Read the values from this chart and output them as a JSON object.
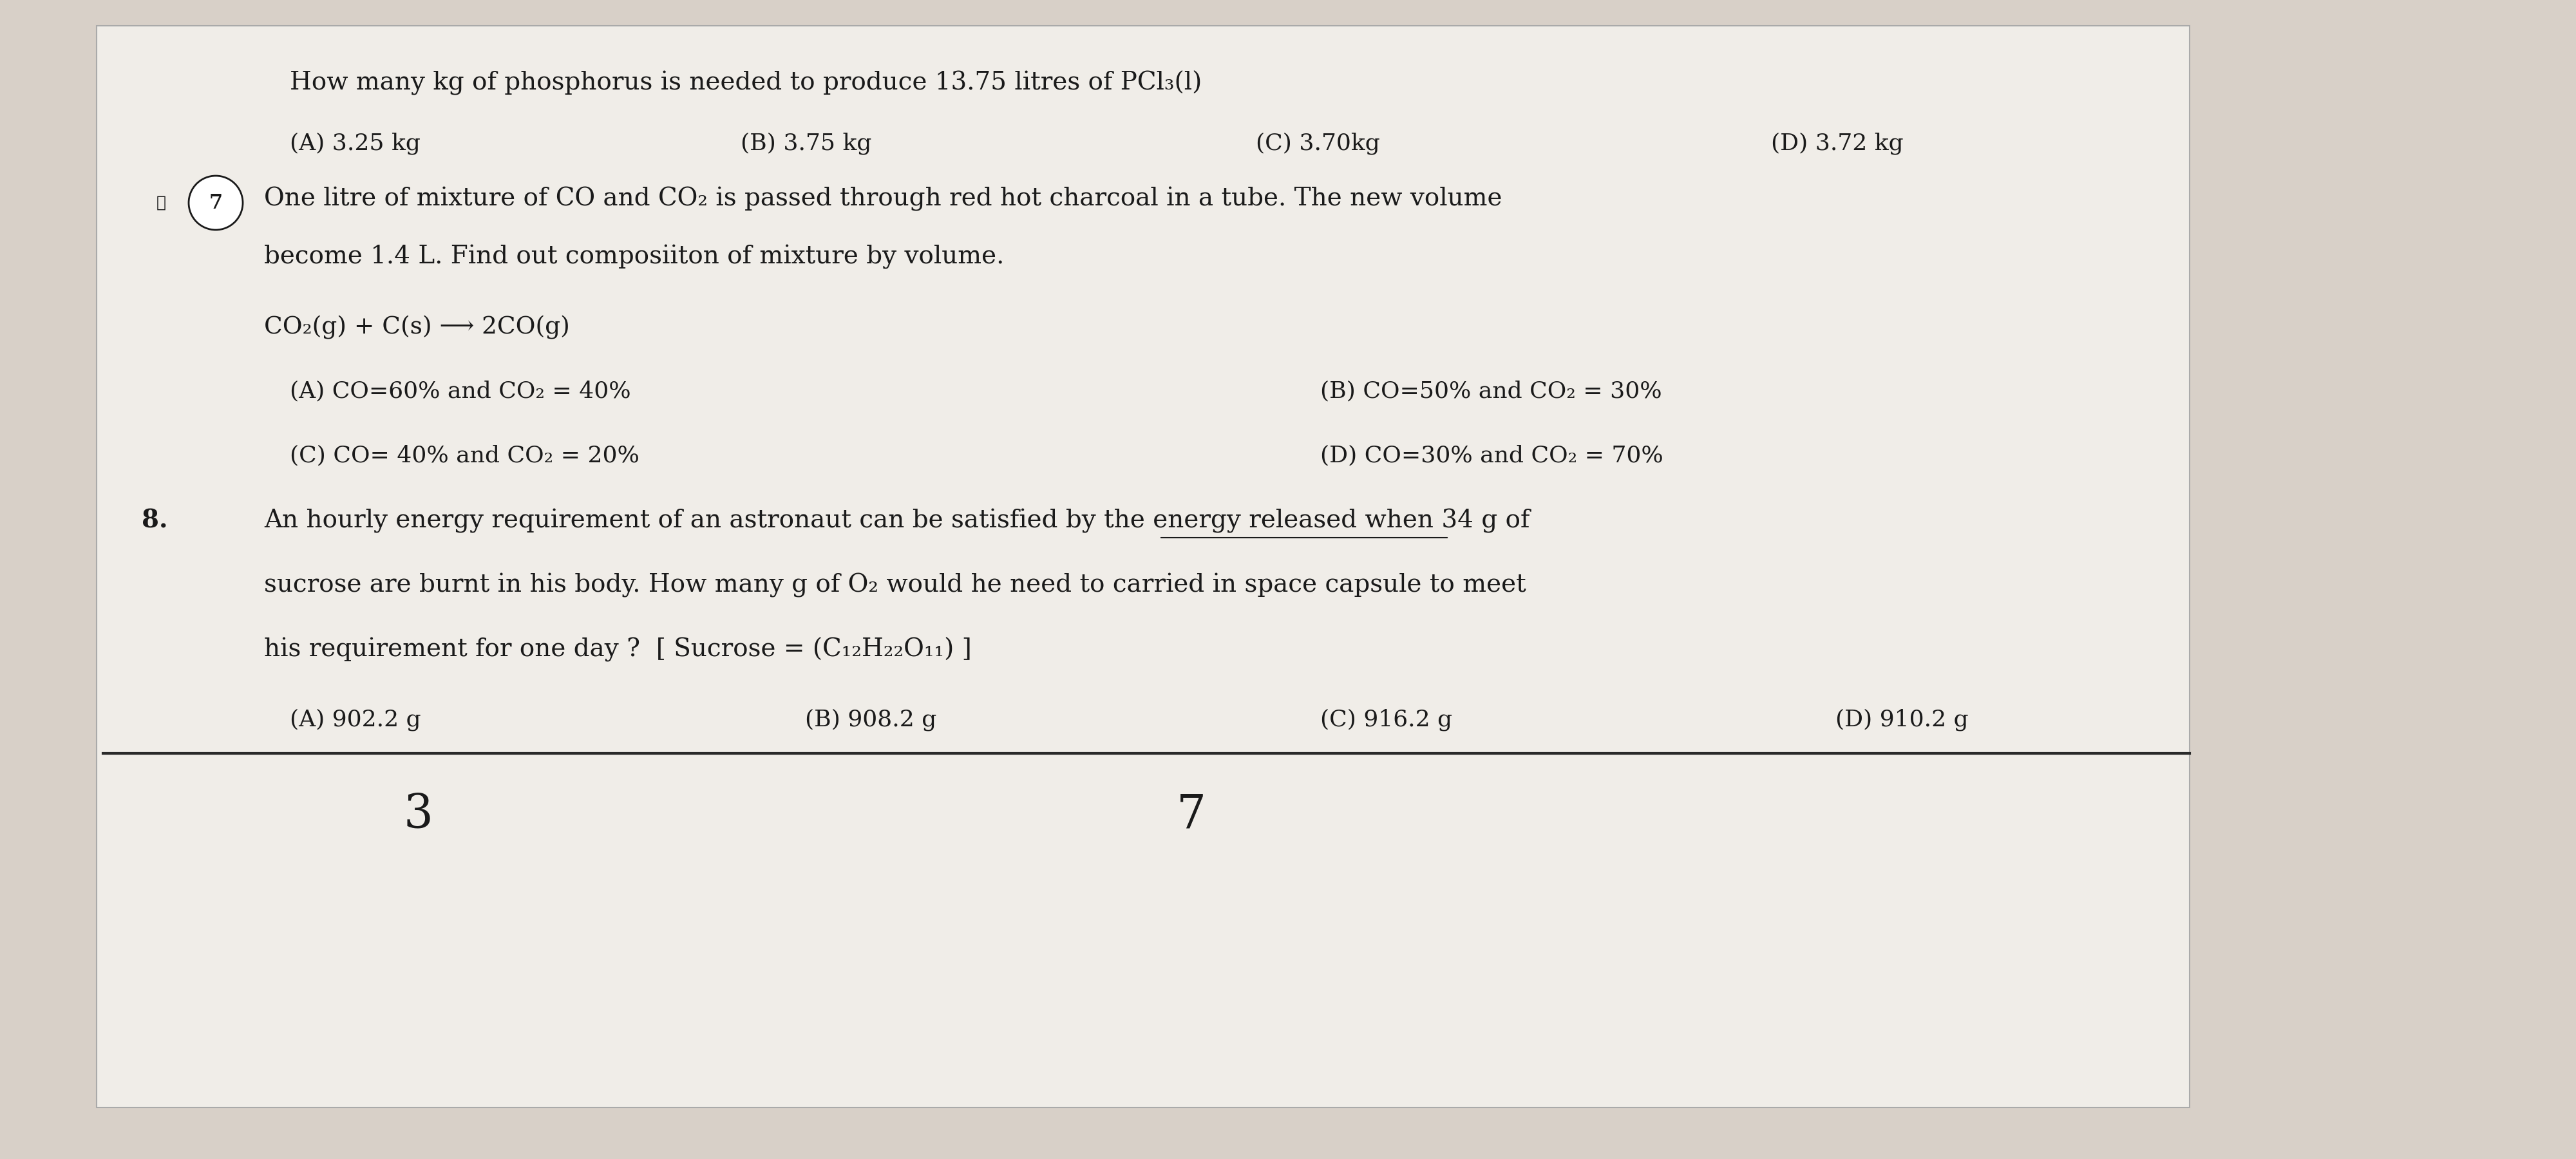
{
  "bg_color": "#d8d0c8",
  "paper_color": "#f0ede8",
  "title_line": "How many kg of phosphorus is needed to produce 13.75 litres of PCl₃(l)",
  "q_options_row1": [
    "(A) 3.25 kg",
    "(B) 3.75 kg",
    "(C) 3.70kg",
    "(D) 3.72 kg"
  ],
  "q7_label": "7.",
  "q7_circle": true,
  "q7_text_line1": "One litre of mixture of CO and CO₂ is passed through red hot charcoal in a tube. The new volume",
  "q7_text_line2": "become 1.4 L. Find out composiiton of mixture by volume.",
  "reaction": "CO₂(g) + C(s) ⟶ 2CO(g)",
  "q7_options": [
    "(A) CO=60% and CO₂ = 40%",
    "(B) CO=50% and CO₂ = 30%",
    "(C) CO= 40% and CO₂ = 20%",
    "(D) CO=30% and CO₂ = 70%"
  ],
  "q8_label": "8.",
  "q8_text_line1": "An hourly energy requirement of an astronaut can be satisfied by the energy released when 34 g of",
  "q8_text_line2": "sucrose are burnt in his body. How many g of O₂ would he need to carried in space capsule to meet",
  "q8_text_line3": "his requirement for one day ?  [ Sucrose = (C₁₂H₂₂O₁₁) ]",
  "q8_options": [
    "(A) 902.2 g",
    "(B) 908.2 g",
    "(C) 916.2 g",
    "(D) 910.2 g"
  ],
  "bottom_numbers": [
    "3",
    "7"
  ],
  "font_size_main": 28,
  "font_size_options": 26,
  "font_size_reaction": 27,
  "font_size_bottom": 52,
  "text_color": "#1a1a1a",
  "line_color": "#2a2a2a"
}
